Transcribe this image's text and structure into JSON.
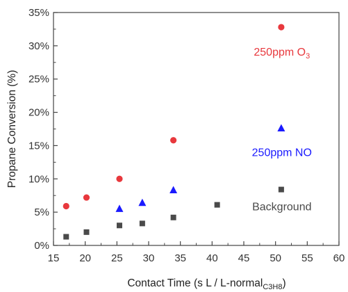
{
  "chart_data": {
    "type": "scatter",
    "title": "",
    "xlabel": "Contact Time (s L / L-normal",
    "xlabel_subscript": "C3H8",
    "xlabel_suffix": ")",
    "ylabel": "Propane Conversion (%)",
    "xlim": [
      15,
      60
    ],
    "ylim": [
      0,
      35
    ],
    "x_ticks": [
      15,
      20,
      25,
      30,
      35,
      40,
      45,
      50,
      55,
      60
    ],
    "x_tick_labels": [
      "15",
      "20",
      "25",
      "30",
      "35",
      "40",
      "45",
      "50",
      "55",
      "60"
    ],
    "y_ticks": [
      0,
      5,
      10,
      15,
      20,
      25,
      30,
      35
    ],
    "y_tick_labels": [
      "0%",
      "5%",
      "10%",
      "15%",
      "20%",
      "25%",
      "30%",
      "35%"
    ],
    "grid": false,
    "legend": "none",
    "series": [
      {
        "name": "250ppm O",
        "name_subscript": "3",
        "label_anchor": [
          51,
          28.5
        ],
        "marker": "circle",
        "color": "#e8383d",
        "points": [
          [
            17,
            5.9
          ],
          [
            20.2,
            7.2
          ],
          [
            25.4,
            10.0
          ],
          [
            33.9,
            15.8
          ],
          [
            50.9,
            32.8
          ]
        ]
      },
      {
        "name": "250ppm NO",
        "label_anchor": [
          51,
          13.4
        ],
        "marker": "triangle",
        "color": "#1a1aff",
        "points": [
          [
            25.4,
            5.5
          ],
          [
            29.0,
            6.4
          ],
          [
            33.9,
            8.3
          ],
          [
            50.9,
            17.6
          ]
        ]
      },
      {
        "name": "Background",
        "label_anchor": [
          51,
          5.3
        ],
        "marker": "square",
        "color": "#4a4a4a",
        "points": [
          [
            17,
            1.3
          ],
          [
            20.2,
            2.0
          ],
          [
            25.4,
            3.0
          ],
          [
            29.0,
            3.3
          ],
          [
            33.9,
            4.2
          ],
          [
            40.8,
            6.1
          ],
          [
            50.9,
            8.4
          ]
        ]
      }
    ]
  }
}
